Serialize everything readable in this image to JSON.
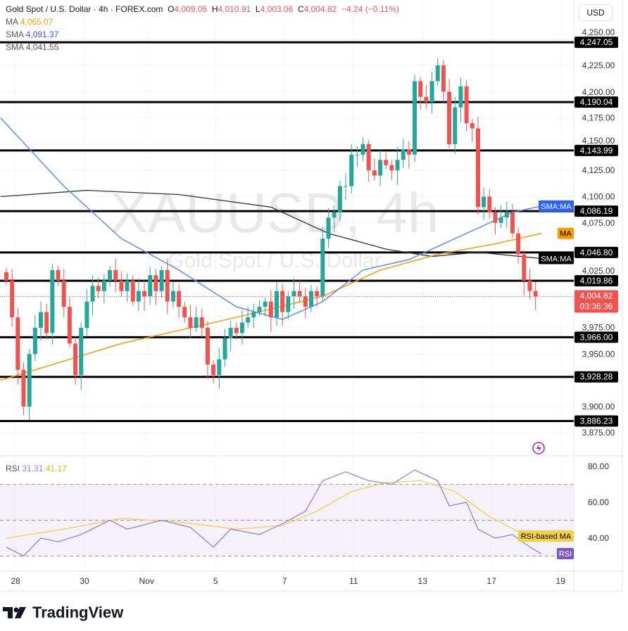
{
  "header": {
    "title": "Gold Spot / U.S. Dollar · 4h · FOREX.com",
    "o_label": "O",
    "o": "4,009.05",
    "h_label": "H",
    "h": "4,010.91",
    "l_label": "L",
    "l": "4,003.06",
    "c_label": "C",
    "c": "4,004.82",
    "change": "−4.24 (−0.11%)"
  },
  "indicators": [
    {
      "name": "MA",
      "value": "4,065.07",
      "color": "#ff9800"
    },
    {
      "name": "SMA",
      "value": "4,091.37",
      "color": "#2962ff"
    },
    {
      "name": "SMA",
      "value": "4,041.55",
      "color": "#131722"
    }
  ],
  "currency": "USD",
  "watermark": {
    "symbol": "XAUUSD, 4h",
    "name": "Gold Spot / U.S. Dollar"
  },
  "logo": "TradingView",
  "chart_data": {
    "type": "candlestick",
    "ylim": [
      3860,
      4262
    ],
    "price_ticks": [
      "4,250.00",
      "4,225.00",
      "4,200.00",
      "4,175.00",
      "4,150.00",
      "4,125.00",
      "4,100.00",
      "4,075.00",
      "4,025.00",
      "3,975.00",
      "3,950.00",
      "3,900.00",
      "3,875.00"
    ],
    "price_tick_values": [
      4250,
      4225,
      4200,
      4175,
      4150,
      4125,
      4100,
      4075,
      4025,
      3975,
      3950,
      3900,
      3875
    ],
    "x_ticks": [
      {
        "label": "28",
        "day": 0
      },
      {
        "label": "30",
        "day": 2
      },
      {
        "label": "Nov",
        "day": 3.8
      },
      {
        "label": "5",
        "day": 5.8
      },
      {
        "label": "7",
        "day": 7.8
      },
      {
        "label": "11",
        "day": 9.8
      },
      {
        "label": "13",
        "day": 11.8
      },
      {
        "label": "17",
        "day": 13.8
      },
      {
        "label": "19",
        "day": 15.8
      }
    ],
    "closes": [
      4020,
      3985,
      3935,
      3900,
      3950,
      3975,
      3990,
      3970,
      4030,
      4020,
      3995,
      3960,
      3930,
      3975,
      4000,
      4015,
      4010,
      4020,
      4030,
      4020,
      4010,
      4020,
      4000,
      4010,
      4005,
      4025,
      4010,
      4030,
      4000,
      4010,
      3995,
      3985,
      3975,
      3985,
      3975,
      3940,
      3930,
      3945,
      3965,
      3975,
      3970,
      3980,
      3985,
      3990,
      3995,
      4000,
      3985,
      4010,
      3990,
      4005,
      4010,
      4005,
      3995,
      4010,
      4005,
      4060,
      4080,
      4085,
      4110,
      4110,
      4140,
      4140,
      4150,
      4125,
      4120,
      4135,
      4130,
      4125,
      4135,
      4145,
      4140,
      4210,
      4195,
      4190,
      4210,
      4225,
      4200,
      4150,
      4185,
      4205,
      4170,
      4165,
      4090,
      4100,
      4085,
      4075,
      4080,
      4085,
      4065,
      4045,
      4020,
      4010,
      4004.82
    ],
    "levels": [
      "4,247.05",
      "4,190.04",
      "4,143.99",
      "4,086.19",
      "4,046.80",
      "4,019.86",
      "3,966.00",
      "3,928.28",
      "3,886.23"
    ],
    "level_values": [
      4247.05,
      4190.04,
      4143.99,
      4086.19,
      4046.8,
      4019.86,
      3966.0,
      3928.28,
      3886.23
    ],
    "last_price": "4,004.82",
    "countdown": "03:36:36",
    "sma_fast": [
      [
        -1,
        4175
      ],
      [
        10,
        4110
      ],
      [
        20,
        4060
      ],
      [
        30,
        4030
      ],
      [
        40,
        3995
      ],
      [
        48,
        3983
      ],
      [
        55,
        4000
      ],
      [
        62,
        4030
      ],
      [
        70,
        4040
      ],
      [
        76,
        4055
      ],
      [
        82,
        4070
      ],
      [
        88,
        4085
      ],
      [
        93,
        4091
      ]
    ],
    "ma": [
      [
        -1,
        3925
      ],
      [
        20,
        3960
      ],
      [
        40,
        3985
      ],
      [
        55,
        4005
      ],
      [
        65,
        4030
      ],
      [
        75,
        4045
      ],
      [
        85,
        4055
      ],
      [
        93,
        4065
      ]
    ],
    "sma_slow": [
      [
        -1,
        4100
      ],
      [
        14,
        4106
      ],
      [
        30,
        4102
      ],
      [
        46,
        4090
      ],
      [
        56,
        4065
      ],
      [
        66,
        4050
      ],
      [
        74,
        4043
      ],
      [
        82,
        4047
      ],
      [
        93,
        4041
      ]
    ],
    "labels": {
      "sma_ma": "SMA:MA",
      "ma": "MA",
      "sma_ma2": "SMA:MA"
    },
    "rsi": {
      "title": "RSI",
      "value": "31.31",
      "ma_value": "41.17",
      "ticks": [
        "80.00",
        "60.00",
        "40.00"
      ],
      "tick_values": [
        80,
        60,
        40
      ],
      "band": [
        30,
        70
      ],
      "line": [
        [
          0,
          35
        ],
        [
          3,
          30
        ],
        [
          6,
          40
        ],
        [
          9,
          38
        ],
        [
          13,
          42
        ],
        [
          18,
          50
        ],
        [
          21,
          45
        ],
        [
          27,
          50
        ],
        [
          32,
          46
        ],
        [
          36,
          35
        ],
        [
          39,
          45
        ],
        [
          44,
          42
        ],
        [
          48,
          48
        ],
        [
          52,
          55
        ],
        [
          55,
          72
        ],
        [
          59,
          77
        ],
        [
          63,
          72
        ],
        [
          67,
          70
        ],
        [
          71,
          78
        ],
        [
          75,
          72
        ],
        [
          77,
          58
        ],
        [
          80,
          60
        ],
        [
          82,
          45
        ],
        [
          85,
          40
        ],
        [
          88,
          42
        ],
        [
          91,
          35
        ],
        [
          93,
          31.31
        ]
      ],
      "ma_line": [
        [
          0,
          40
        ],
        [
          10,
          45
        ],
        [
          20,
          51
        ],
        [
          30,
          49
        ],
        [
          40,
          45
        ],
        [
          48,
          47
        ],
        [
          54,
          55
        ],
        [
          60,
          66
        ],
        [
          66,
          71
        ],
        [
          72,
          72
        ],
        [
          78,
          66
        ],
        [
          84,
          52
        ],
        [
          90,
          42
        ],
        [
          93,
          41.17
        ]
      ],
      "ma_label": "RSI-based MA",
      "label": "RSI"
    },
    "colors": {
      "up": "#26a69a",
      "down": "#ef5350",
      "ma": "#ff9800",
      "sma_fast": "#5b8def",
      "sma_slow": "#333333",
      "rsi": "#9c7ed6",
      "rsi_ma": "#f5d142"
    }
  }
}
